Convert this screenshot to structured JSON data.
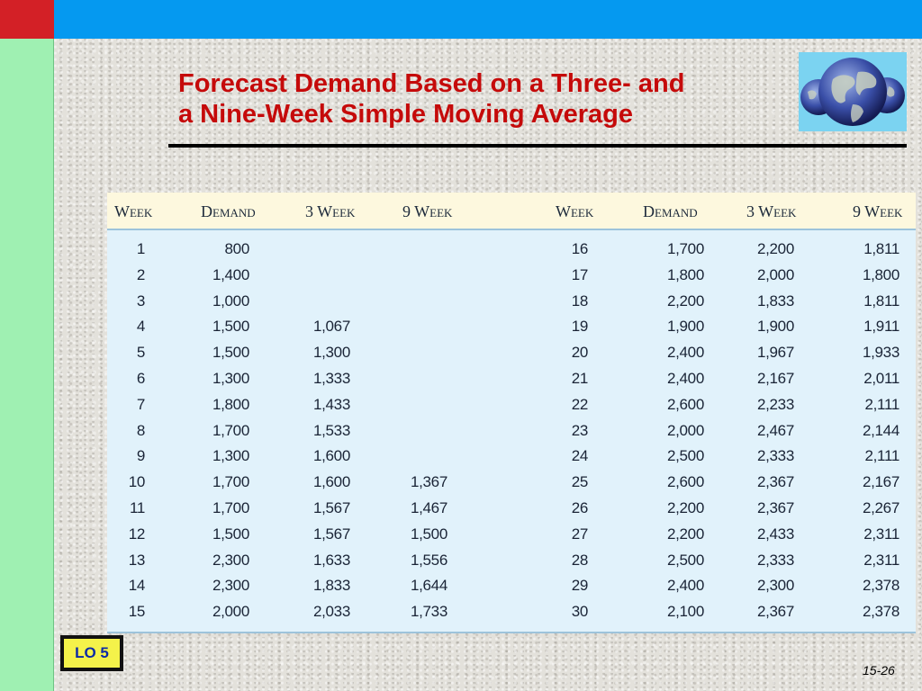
{
  "slide": {
    "title_line1": "Forecast Demand Based on a Three- and",
    "title_line2": "a Nine-Week Simple Moving Average",
    "lo_badge": "LO 5",
    "page_number": "15-26"
  },
  "colors": {
    "accent_red": "#d32026",
    "top_bar_blue": "#0599f0",
    "side_bar_green": "#9ff0b2",
    "title_red": "#c50a0a"
  },
  "table": {
    "headers": [
      "Week",
      "Demand",
      "3 Week",
      "9 Week",
      "Week",
      "Demand",
      "3 Week",
      "9 Week"
    ],
    "rows": [
      [
        "1",
        "800",
        "",
        "",
        "16",
        "1,700",
        "2,200",
        "1,811"
      ],
      [
        "2",
        "1,400",
        "",
        "",
        "17",
        "1,800",
        "2,000",
        "1,800"
      ],
      [
        "3",
        "1,000",
        "",
        "",
        "18",
        "2,200",
        "1,833",
        "1,811"
      ],
      [
        "4",
        "1,500",
        "1,067",
        "",
        "19",
        "1,900",
        "1,900",
        "1,911"
      ],
      [
        "5",
        "1,500",
        "1,300",
        "",
        "20",
        "2,400",
        "1,967",
        "1,933"
      ],
      [
        "6",
        "1,300",
        "1,333",
        "",
        "21",
        "2,400",
        "2,167",
        "2,011"
      ],
      [
        "7",
        "1,800",
        "1,433",
        "",
        "22",
        "2,600",
        "2,233",
        "2,111"
      ],
      [
        "8",
        "1,700",
        "1,533",
        "",
        "23",
        "2,000",
        "2,467",
        "2,144"
      ],
      [
        "9",
        "1,300",
        "1,600",
        "",
        "24",
        "2,500",
        "2,333",
        "2,111"
      ],
      [
        "10",
        "1,700",
        "1,600",
        "1,367",
        "25",
        "2,600",
        "2,367",
        "2,167"
      ],
      [
        "11",
        "1,700",
        "1,567",
        "1,467",
        "26",
        "2,200",
        "2,367",
        "2,267"
      ],
      [
        "12",
        "1,500",
        "1,567",
        "1,500",
        "27",
        "2,200",
        "2,433",
        "2,311"
      ],
      [
        "13",
        "2,300",
        "1,633",
        "1,556",
        "28",
        "2,500",
        "2,333",
        "2,311"
      ],
      [
        "14",
        "2,300",
        "1,833",
        "1,644",
        "29",
        "2,400",
        "2,300",
        "2,378"
      ],
      [
        "15",
        "2,000",
        "2,033",
        "1,733",
        "30",
        "2,100",
        "2,367",
        "2,378"
      ]
    ]
  },
  "icons": {
    "globe": "globe-icon"
  }
}
